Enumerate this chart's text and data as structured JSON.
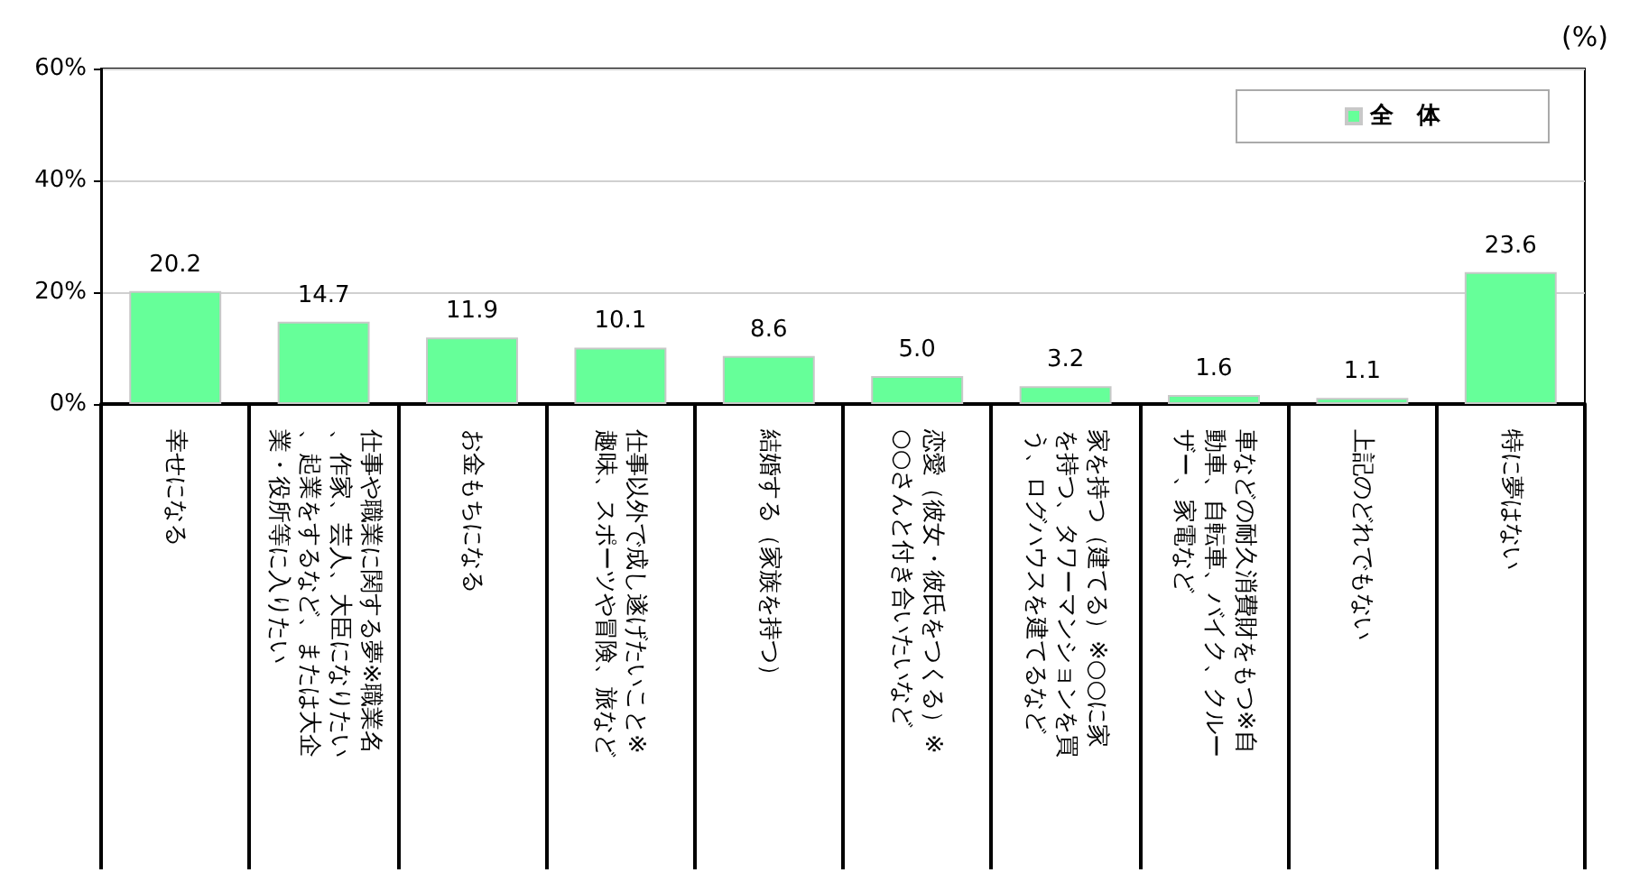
{
  "chart_data": {
    "type": "bar",
    "ylabel": "(%)",
    "categories": [
      "幸せになる",
      "仕事や職業に関する夢※職業名、作家、芸人、大臣になりたい、起業をするなど、または大企業・役所等に入りたい",
      "お金もちになる",
      "仕事以外で成し遂げたいこと※趣味、スポーツや冒険、旅など",
      "結婚する（家族を持つ）",
      "恋愛（彼女・彼氏をつくる）※○○さんと付き合いたいなど",
      "家を持つ（建てる）※○○に家を持つ、タワーマンションを買う、ログハウスを建てるなど",
      "車などの耐久消費財をもつ※自動車、自転車、バイク、クルーザー、家電など",
      "上記のどれでもない",
      "特に夢はない"
    ],
    "series": [
      {
        "name": "全　体",
        "color": "#66ff99",
        "values": [
          20.2,
          14.7,
          11.9,
          10.1,
          8.6,
          5.0,
          3.2,
          1.6,
          1.1,
          23.6
        ],
        "value_labels": [
          "20.2",
          "14.7",
          "11.9",
          "10.1",
          "8.6",
          "5.0",
          "3.2",
          "1.6",
          "1.1",
          "23.6"
        ]
      }
    ],
    "ylim": [
      0,
      60
    ],
    "yticks": [
      {
        "value": 0,
        "label": "0%"
      },
      {
        "value": 20,
        "label": "20%"
      },
      {
        "value": 40,
        "label": "40%"
      },
      {
        "value": 60,
        "label": "60%"
      }
    ],
    "grid": "y",
    "legend": "top right"
  }
}
